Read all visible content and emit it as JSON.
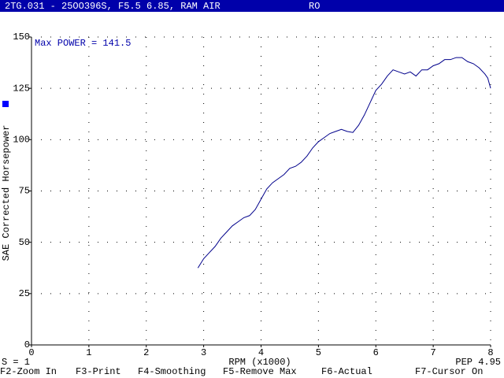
{
  "chart_data": {
    "type": "line",
    "title": "2TG.031 - 25OO396S, F5.5 6.85, RAM AIR",
    "subtitle": "RO",
    "annotation": "Max POWER = 141.5",
    "x_label": "RPM (x1000)",
    "y_label": "SAE Corrected Horsepower",
    "left_status": "S = 1",
    "right_status": "PEP 4.95",
    "xlim": [
      0,
      8
    ],
    "ylim": [
      0,
      150
    ],
    "xticks": [
      0,
      1,
      2,
      3,
      4,
      5,
      6,
      7,
      8
    ],
    "yticks": [
      0,
      25,
      50,
      75,
      100,
      125,
      150
    ],
    "grid": true,
    "x": [
      2.9,
      3.0,
      3.1,
      3.2,
      3.3,
      3.4,
      3.5,
      3.6,
      3.7,
      3.8,
      3.9,
      4.0,
      4.1,
      4.2,
      4.3,
      4.4,
      4.5,
      4.6,
      4.7,
      4.8,
      4.9,
      5.0,
      5.1,
      5.2,
      5.3,
      5.4,
      5.5,
      5.6,
      5.7,
      5.8,
      5.9,
      6.0,
      6.1,
      6.2,
      6.3,
      6.4,
      6.5,
      6.6,
      6.7,
      6.8,
      6.9,
      7.0,
      7.1,
      7.2,
      7.3,
      7.4,
      7.5,
      7.6,
      7.7,
      7.8,
      7.9,
      7.95,
      8.0
    ],
    "series": [
      {
        "color": "#00008b",
        "values": [
          37.5,
          42,
          45,
          48,
          52,
          55,
          58,
          60,
          62,
          63,
          66,
          71,
          76,
          79,
          81,
          83,
          86,
          87,
          89,
          92,
          96,
          99,
          101,
          103,
          104,
          105,
          104,
          103.5,
          107,
          112,
          118,
          124,
          127,
          131,
          134,
          133,
          132,
          133,
          131,
          134,
          134,
          136,
          137,
          139,
          139,
          140,
          140,
          138,
          137,
          135,
          132,
          130,
          125
        ]
      }
    ]
  },
  "menu": [
    "F2-Zoom In",
    "F3-Print",
    "F4-Smoothing",
    "F5-Remove Max",
    "F6-Actual",
    "F7-Cursor On"
  ]
}
